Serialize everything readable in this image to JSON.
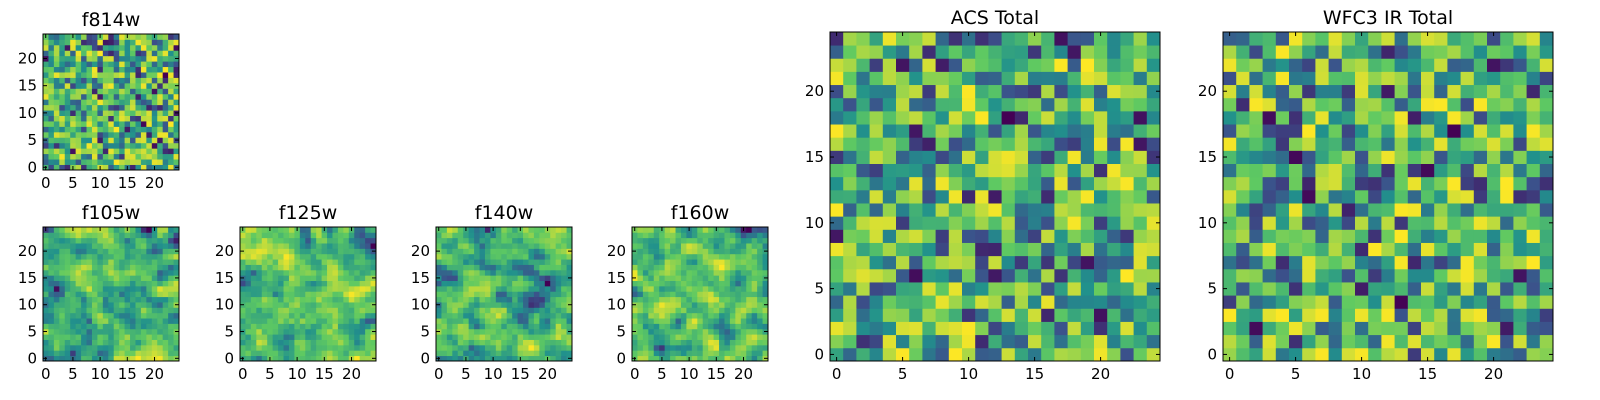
{
  "colors": {
    "frame": "#000000",
    "viridis": [
      "#440154",
      "#3b528b",
      "#21918c",
      "#5ec962",
      "#fde725"
    ]
  },
  "chart_data": [
    {
      "id": "f814w",
      "type": "heatmap",
      "title": "f814w",
      "grid_size": 25,
      "xlim": [
        -0.5,
        24.5
      ],
      "ylim": [
        -0.5,
        24.5
      ],
      "xticks": [
        0,
        5,
        10,
        15,
        20
      ],
      "yticks": [
        0,
        5,
        10,
        15,
        20
      ],
      "value_range": [
        0,
        1
      ],
      "seed": 8141,
      "smooth": 0
    },
    {
      "id": "acs-total",
      "type": "heatmap",
      "title": "ACS Total",
      "grid_size": 25,
      "xlim": [
        -0.5,
        24.5
      ],
      "ylim": [
        -0.5,
        24.5
      ],
      "xticks": [
        0,
        5,
        10,
        15,
        20
      ],
      "yticks": [
        0,
        5,
        10,
        15,
        20
      ],
      "value_range": [
        0,
        1
      ],
      "seed": 2207,
      "smooth": 0
    },
    {
      "id": "wfc3-ir-total",
      "type": "heatmap",
      "title": "WFC3 IR Total",
      "grid_size": 25,
      "xlim": [
        -0.5,
        24.5
      ],
      "ylim": [
        -0.5,
        24.5
      ],
      "xticks": [
        0,
        5,
        10,
        15,
        20
      ],
      "yticks": [
        0,
        5,
        10,
        15,
        20
      ],
      "value_range": [
        0,
        1
      ],
      "seed": 3301,
      "smooth": 0
    },
    {
      "id": "f105w",
      "type": "heatmap",
      "title": "f105w",
      "grid_size": 25,
      "xlim": [
        -0.5,
        24.5
      ],
      "ylim": [
        -0.5,
        24.5
      ],
      "xticks": [
        0,
        5,
        10,
        15,
        20
      ],
      "yticks": [
        0,
        5,
        10,
        15,
        20
      ],
      "value_range": [
        0,
        1
      ],
      "seed": 1051,
      "smooth": 1
    },
    {
      "id": "f125w",
      "type": "heatmap",
      "title": "f125w",
      "grid_size": 25,
      "xlim": [
        -0.5,
        24.5
      ],
      "ylim": [
        -0.5,
        24.5
      ],
      "xticks": [
        0,
        5,
        10,
        15,
        20
      ],
      "yticks": [
        0,
        5,
        10,
        15,
        20
      ],
      "value_range": [
        0,
        1
      ],
      "seed": 1252,
      "smooth": 1
    },
    {
      "id": "f140w",
      "type": "heatmap",
      "title": "f140w",
      "grid_size": 25,
      "xlim": [
        -0.5,
        24.5
      ],
      "ylim": [
        -0.5,
        24.5
      ],
      "xticks": [
        0,
        5,
        10,
        15,
        20
      ],
      "yticks": [
        0,
        5,
        10,
        15,
        20
      ],
      "value_range": [
        0,
        1
      ],
      "seed": 1403,
      "smooth": 1
    },
    {
      "id": "f160w",
      "type": "heatmap",
      "title": "f160w",
      "grid_size": 25,
      "xlim": [
        -0.5,
        24.5
      ],
      "ylim": [
        -0.5,
        24.5
      ],
      "xticks": [
        0,
        5,
        10,
        15,
        20
      ],
      "yticks": [
        0,
        5,
        10,
        15,
        20
      ],
      "value_range": [
        0,
        1
      ],
      "seed": 1604,
      "smooth": 1
    }
  ]
}
